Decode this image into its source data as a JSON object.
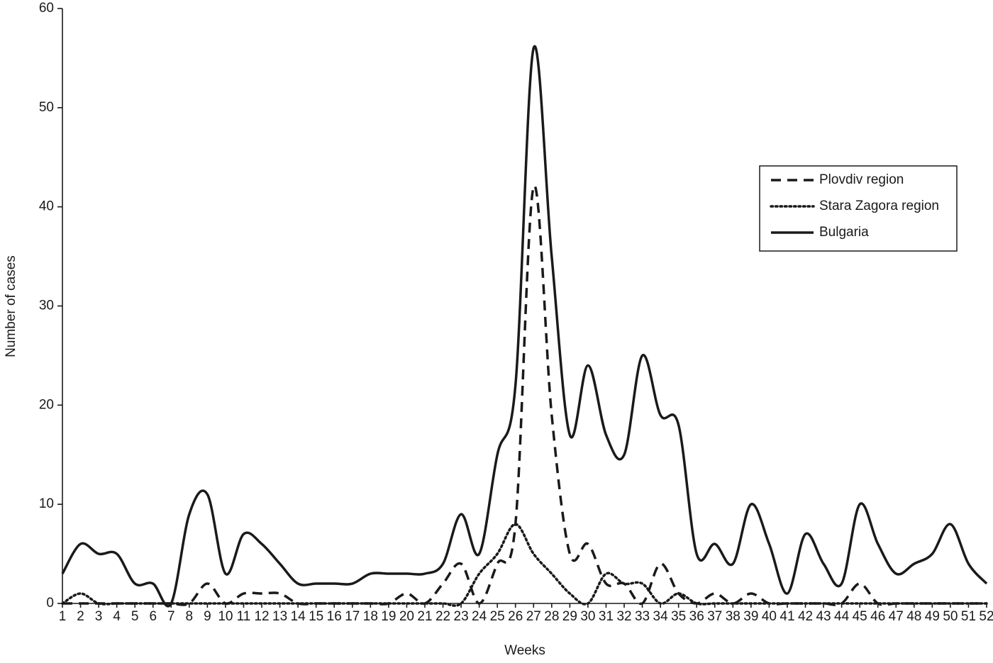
{
  "chart_data": {
    "type": "line",
    "x_label": "Weeks",
    "y_label": "Number of cases",
    "x": [
      1,
      2,
      3,
      4,
      5,
      6,
      7,
      8,
      9,
      10,
      11,
      12,
      13,
      14,
      15,
      16,
      17,
      18,
      19,
      20,
      21,
      22,
      23,
      24,
      25,
      26,
      27,
      28,
      29,
      30,
      31,
      32,
      33,
      34,
      35,
      36,
      37,
      38,
      39,
      40,
      41,
      42,
      43,
      44,
      45,
      46,
      47,
      48,
      49,
      50,
      51,
      52
    ],
    "xlim": [
      1,
      52
    ],
    "xticks": [
      1,
      2,
      3,
      4,
      5,
      6,
      7,
      8,
      9,
      10,
      11,
      12,
      13,
      14,
      15,
      16,
      17,
      18,
      19,
      20,
      21,
      22,
      23,
      24,
      25,
      26,
      27,
      28,
      29,
      30,
      31,
      32,
      33,
      34,
      35,
      36,
      37,
      38,
      39,
      40,
      41,
      42,
      43,
      44,
      45,
      46,
      47,
      48,
      49,
      50,
      51,
      52
    ],
    "ylim": [
      0,
      60
    ],
    "yticks": [
      0,
      10,
      20,
      30,
      40,
      50,
      60
    ],
    "legend": "right",
    "series": [
      {
        "name": "Plovdiv region",
        "color": "#1a1a1a",
        "dash": "dashed",
        "values": [
          0,
          0,
          0,
          0,
          0,
          0,
          0,
          0,
          2,
          0,
          1,
          1,
          1,
          0,
          0,
          0,
          0,
          0,
          0,
          1,
          0,
          2,
          4,
          0,
          4,
          8,
          42,
          19,
          5,
          6,
          2,
          2,
          0,
          4,
          1,
          0,
          1,
          0,
          1,
          0,
          0,
          0,
          0,
          0,
          2,
          0,
          0,
          0,
          0,
          0,
          0,
          0
        ]
      },
      {
        "name": "Stara Zagora region",
        "color": "#1a1a1a",
        "dash": "dotted",
        "values": [
          0,
          1,
          0,
          0,
          0,
          0,
          0,
          0,
          0,
          0,
          0,
          0,
          0,
          0,
          0,
          0,
          0,
          0,
          0,
          0,
          0,
          0,
          0,
          3,
          5,
          8,
          5,
          3,
          1,
          0,
          3,
          2,
          2,
          0,
          1,
          0,
          0,
          0,
          0,
          0,
          0,
          0,
          0,
          0,
          0,
          0,
          0,
          0,
          0,
          0,
          0,
          0
        ]
      },
      {
        "name": "Bulgaria",
        "color": "#1a1a1a",
        "dash": "solid",
        "values": [
          3,
          6,
          5,
          5,
          2,
          2,
          0,
          9,
          11,
          3,
          7,
          6,
          4,
          2,
          2,
          2,
          2,
          3,
          3,
          3,
          3,
          4,
          9,
          5,
          15,
          22,
          56,
          35,
          17,
          24,
          17,
          15,
          25,
          19,
          18,
          5,
          6,
          4,
          10,
          6,
          1,
          7,
          4,
          2,
          10,
          6,
          3,
          4,
          5,
          8,
          4,
          2
        ]
      }
    ]
  }
}
